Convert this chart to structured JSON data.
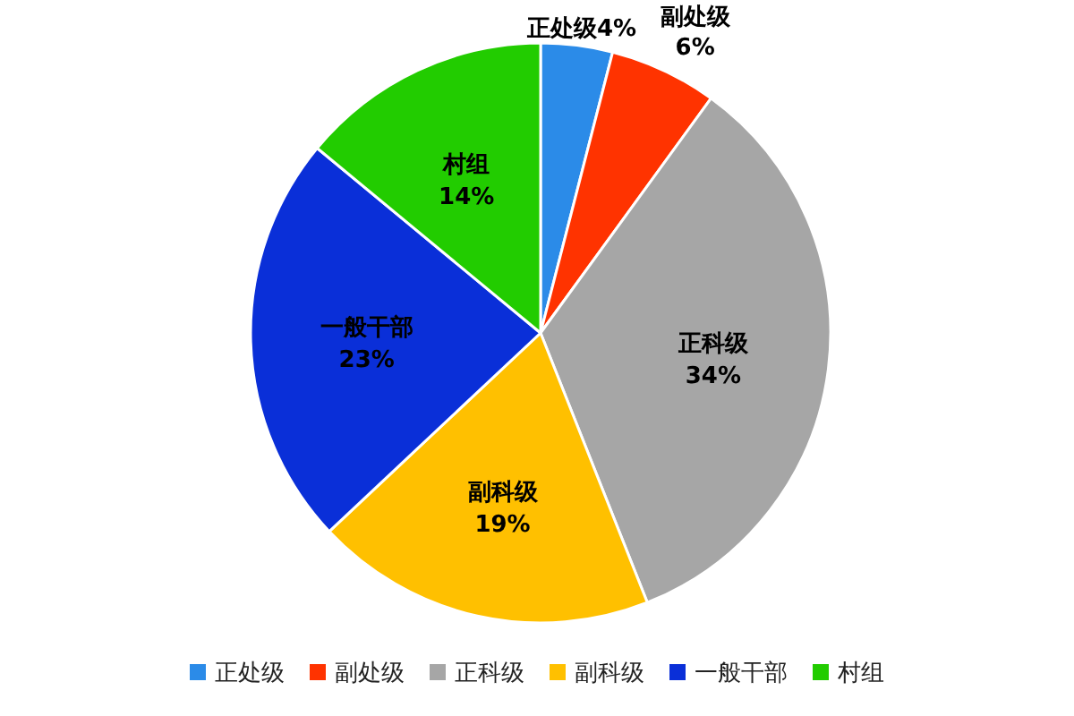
{
  "chart_data": {
    "type": "pie",
    "categories": [
      "正处级",
      "副处级",
      "正科级",
      "副科级",
      "一般干部",
      "村组"
    ],
    "values": [
      4,
      6,
      34,
      19,
      23,
      14
    ],
    "colors": [
      "#2b8be8",
      "#ff3300",
      "#a6a6a6",
      "#ffc000",
      "#0a2fd8",
      "#22cc00"
    ],
    "value_labels": [
      "4%",
      "6%",
      "34%",
      "19%",
      "23%",
      "14%"
    ],
    "legend": "bottom"
  }
}
